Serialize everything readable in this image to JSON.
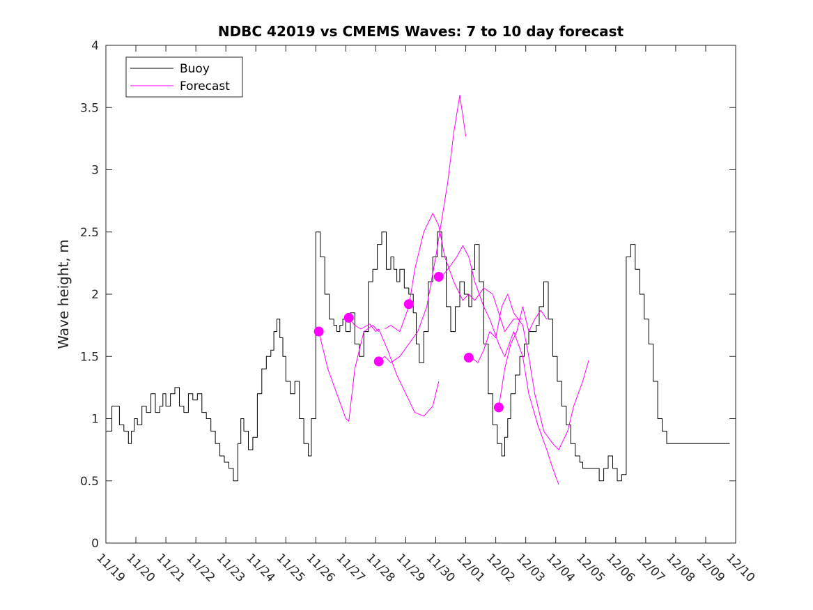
{
  "chart_data": {
    "type": "line",
    "title": "NDBC 42019 vs CMEMS Waves: 7 to 10 day forecast",
    "xlabel": "",
    "ylabel": "Wave height, m",
    "xlim": [
      0,
      21
    ],
    "ylim": [
      0,
      4
    ],
    "x_tick_positions": [
      0,
      1,
      2,
      3,
      4,
      5,
      6,
      7,
      8,
      9,
      10,
      11,
      12,
      13,
      14,
      15,
      16,
      17,
      18,
      19,
      20,
      21
    ],
    "x_tick_labels": [
      "11/19",
      "11/20",
      "11/21",
      "11/22",
      "11/23",
      "11/24",
      "11/25",
      "11/26",
      "11/27",
      "11/28",
      "11/29",
      "11/30",
      "12/01",
      "12/02",
      "12/03",
      "12/04",
      "12/05",
      "12/06",
      "12/07",
      "12/08",
      "12/09",
      "12/10"
    ],
    "y_ticks": [
      0,
      0.5,
      1,
      1.5,
      2,
      2.5,
      3,
      3.5,
      4
    ],
    "y_tick_labels": [
      "0",
      "0.5",
      "1",
      "1.5",
      "2",
      "2.5",
      "3",
      "3.5",
      "4"
    ],
    "legend": {
      "placement": "top-left",
      "entries": [
        "Buoy",
        "Forecast"
      ]
    },
    "colors": {
      "buoy": "#000000",
      "forecast": "#ff00ff",
      "axis": "#262626"
    },
    "series": [
      {
        "name": "Buoy",
        "x": [
          0,
          0.15,
          0.2,
          0.35,
          0.45,
          0.6,
          0.75,
          0.85,
          0.95,
          1.05,
          1.2,
          1.35,
          1.5,
          1.65,
          1.8,
          1.9,
          2.0,
          2.15,
          2.3,
          2.45,
          2.6,
          2.75,
          2.9,
          3.05,
          3.2,
          3.35,
          3.5,
          3.65,
          3.8,
          3.95,
          4.1,
          4.25,
          4.4,
          4.5,
          4.6,
          4.75,
          4.9,
          5.05,
          5.2,
          5.35,
          5.5,
          5.6,
          5.7,
          5.8,
          5.9,
          6.0,
          6.15,
          6.3,
          6.45,
          6.6,
          6.75,
          6.85,
          7.0,
          7.15,
          7.3,
          7.45,
          7.6,
          7.7,
          7.8,
          7.9,
          8.0,
          8.15,
          8.3,
          8.45,
          8.6,
          8.75,
          8.9,
          9.05,
          9.2,
          9.35,
          9.5,
          9.6,
          9.7,
          9.8,
          9.95,
          10.1,
          10.25,
          10.35,
          10.45,
          10.6,
          10.75,
          10.9,
          11.05,
          11.2,
          11.35,
          11.5,
          11.65,
          11.8,
          11.95,
          12.1,
          12.2,
          12.3,
          12.45,
          12.6,
          12.75,
          12.9,
          13.05,
          13.2,
          13.3,
          13.4,
          13.5,
          13.65,
          13.8,
          13.95,
          14.1,
          14.25,
          14.35,
          14.45,
          14.6,
          14.75,
          14.9,
          15.05,
          15.2,
          15.35,
          15.5,
          15.65,
          15.8,
          15.9,
          16.0,
          16.15,
          16.3,
          16.45,
          16.6,
          16.75,
          16.9,
          17.05,
          17.2,
          17.35,
          17.5,
          17.65,
          17.8,
          17.95,
          18.1,
          18.25,
          18.4,
          18.55,
          18.7,
          18.85,
          19.0,
          19.1,
          19.2,
          19.3,
          19.45,
          19.6,
          19.75,
          19.9,
          20.05,
          20.2,
          20.35,
          20.5,
          20.65,
          20.8
        ],
        "y": [
          0.9,
          0.9,
          1.1,
          1.1,
          0.95,
          0.9,
          0.8,
          0.9,
          1.0,
          0.95,
          1.1,
          1.05,
          1.2,
          1.05,
          1.1,
          1.2,
          1.1,
          1.2,
          1.25,
          1.1,
          1.05,
          1.2,
          1.15,
          1.2,
          1.05,
          1.0,
          0.9,
          0.8,
          0.7,
          0.65,
          0.6,
          0.5,
          0.8,
          1.0,
          0.9,
          0.75,
          0.85,
          1.2,
          1.4,
          1.5,
          1.55,
          1.7,
          1.8,
          1.65,
          1.5,
          1.3,
          1.2,
          1.3,
          1.0,
          0.8,
          0.7,
          1.0,
          2.5,
          2.3,
          2.0,
          1.8,
          1.75,
          1.7,
          1.75,
          1.8,
          1.7,
          1.85,
          1.6,
          1.5,
          1.7,
          2.1,
          2.2,
          2.4,
          2.5,
          2.2,
          2.3,
          2.2,
          2.1,
          2.2,
          2.05,
          2.0,
          1.85,
          1.6,
          1.45,
          1.7,
          2.1,
          2.3,
          2.5,
          2.3,
          1.9,
          1.7,
          1.9,
          2.1,
          2.0,
          1.9,
          2.2,
          2.4,
          2.1,
          1.6,
          1.2,
          0.95,
          0.8,
          0.7,
          0.85,
          1.0,
          1.2,
          1.35,
          1.5,
          1.6,
          1.7,
          1.7,
          1.75,
          1.9,
          2.1,
          1.8,
          1.5,
          1.3,
          1.1,
          0.95,
          0.8,
          0.7,
          0.65,
          0.6,
          0.6,
          0.6,
          0.6,
          0.5,
          0.6,
          0.7,
          0.6,
          0.5,
          0.55,
          2.3,
          2.4,
          2.2,
          2.0,
          1.8,
          1.6,
          1.3,
          1.0,
          0.9,
          0.8,
          0.8,
          0.8,
          0.8,
          0.8,
          0.8,
          0.8,
          0.8,
          0.8,
          0.8,
          0.8,
          0.8,
          0.8,
          0.8,
          0.8,
          0.8
        ]
      },
      {
        "name": "Forecast",
        "x": [
          7.1,
          7.4,
          7.7,
          8.0,
          8.1,
          8.3,
          8.6,
          8.9,
          9.1
        ],
        "y": [
          1.7,
          1.4,
          1.2,
          1.0,
          0.98,
          1.4,
          1.7,
          1.75,
          1.7
        ]
      },
      {
        "name": "Forecast",
        "x": [
          8.1,
          8.3,
          8.5,
          8.8,
          9.0,
          9.1,
          9.4,
          9.7,
          10.1,
          10.3,
          10.6,
          10.9,
          11.1
        ],
        "y": [
          1.81,
          1.75,
          1.72,
          1.76,
          1.7,
          1.72,
          1.55,
          1.35,
          1.15,
          1.05,
          1.02,
          1.1,
          1.3
        ]
      },
      {
        "name": "Forecast",
        "x": [
          9.1,
          9.3,
          9.5,
          9.8,
          10.1,
          10.4,
          10.7,
          11.0,
          11.2,
          11.4,
          11.6,
          11.8,
          12.0
        ],
        "y": [
          1.46,
          1.5,
          1.45,
          1.5,
          1.6,
          1.7,
          1.9,
          2.3,
          2.6,
          2.9,
          3.3,
          3.6,
          3.27
        ]
      },
      {
        "name": "Forecast",
        "x": [
          9.3,
          9.5,
          9.8,
          10.1,
          10.3,
          10.6,
          10.9,
          11.1,
          11.3,
          11.6,
          11.9,
          12.1,
          12.3,
          12.6,
          12.9,
          13.1,
          13.3,
          13.6,
          13.9
        ],
        "y": [
          1.72,
          1.75,
          1.7,
          1.9,
          2.2,
          2.5,
          2.65,
          2.55,
          2.3,
          2.1,
          1.95,
          2.0,
          1.95,
          2.05,
          2.0,
          1.85,
          1.7,
          1.8,
          1.8
        ]
      },
      {
        "name": "Forecast",
        "x": [
          11.2,
          11.4,
          11.7,
          11.9,
          12.1,
          12.3,
          12.6,
          12.8,
          13.1,
          13.3,
          13.6,
          13.9,
          14.1,
          14.4,
          14.7,
          14.9,
          15.1
        ],
        "y": [
          2.14,
          2.2,
          2.3,
          2.39,
          2.3,
          2.1,
          1.9,
          1.8,
          1.6,
          1.5,
          1.7,
          1.5,
          1.2,
          0.95,
          0.75,
          0.6,
          0.47
        ]
      },
      {
        "name": "Forecast",
        "x": [
          12.2,
          12.4,
          12.6,
          12.8,
          13.0,
          13.2,
          13.4,
          13.6,
          13.9,
          14.1,
          14.3,
          14.6,
          14.9,
          15.1,
          15.4,
          15.6,
          15.9,
          16.1
        ],
        "y": [
          1.49,
          1.45,
          1.55,
          1.7,
          1.65,
          1.9,
          2.0,
          1.85,
          1.75,
          1.5,
          1.2,
          0.9,
          0.8,
          0.75,
          0.9,
          1.1,
          1.3,
          1.47
        ]
      },
      {
        "name": "Forecast",
        "x": [
          13.1,
          13.3,
          13.5,
          13.7,
          13.9,
          14.1,
          14.3,
          14.5,
          14.7
        ],
        "y": [
          1.09,
          1.4,
          1.6,
          1.7,
          1.9,
          1.7,
          1.8,
          1.87,
          1.8
        ]
      }
    ],
    "forecast_start_markers": {
      "x": [
        7.1,
        8.1,
        9.1,
        10.1,
        11.1,
        12.1,
        13.1
      ],
      "y": [
        1.7,
        1.81,
        1.46,
        1.92,
        2.14,
        1.49,
        1.09
      ]
    }
  }
}
